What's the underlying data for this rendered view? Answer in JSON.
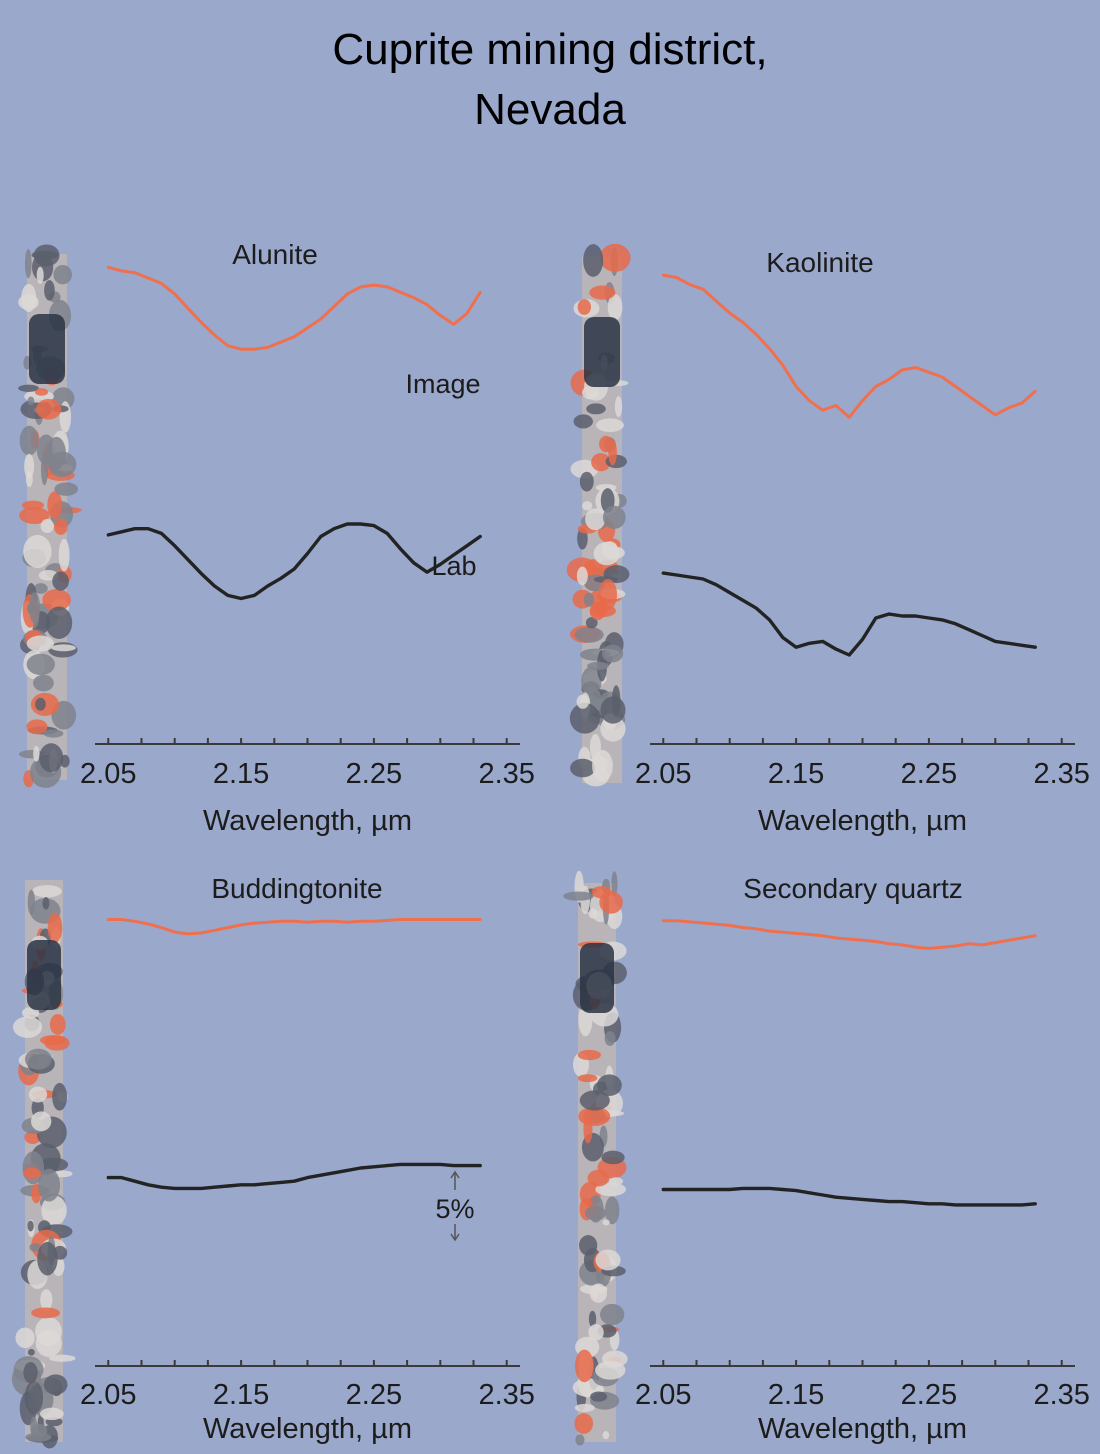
{
  "title_lines": [
    "Cuprite mining district,",
    "Nevada"
  ],
  "colors": {
    "background": "#9aa8cc",
    "image_series": "#f0704e",
    "lab_series": "#232323",
    "axis": "#3a3a3a",
    "text": "#1c1c1c",
    "strip_base": "#b8b4b8",
    "strip_red": "#e86a4a",
    "strip_dark": "#2a3444"
  },
  "chart_data": [
    {
      "type": "line",
      "title": "Alunite",
      "xlabel": "Wavelength, µm",
      "xticks": [
        "2.05",
        "2.15",
        "2.25",
        "2.35"
      ],
      "xlim": [
        2.04,
        2.36
      ],
      "ylim": [
        0,
        1
      ],
      "annotations": [
        "Image",
        "Lab"
      ],
      "series": [
        {
          "x": [
            2.05,
            2.06,
            2.07,
            2.08,
            2.09,
            2.1,
            2.11,
            2.12,
            2.13,
            2.14,
            2.15,
            2.16,
            2.17,
            2.18,
            2.19,
            2.2,
            2.21,
            2.22,
            2.23,
            2.24,
            2.25,
            2.26,
            2.27,
            2.28,
            2.29,
            2.3,
            2.31,
            2.32,
            2.33
          ],
          "y": [
            0.97,
            0.95,
            0.94,
            0.91,
            0.88,
            0.82,
            0.74,
            0.66,
            0.59,
            0.53,
            0.51,
            0.51,
            0.52,
            0.55,
            0.58,
            0.63,
            0.68,
            0.75,
            0.82,
            0.86,
            0.87,
            0.86,
            0.83,
            0.8,
            0.76,
            0.7,
            0.65,
            0.71,
            0.83
          ]
        },
        {
          "x": [
            2.05,
            2.06,
            2.07,
            2.08,
            2.09,
            2.1,
            2.11,
            2.12,
            2.13,
            2.14,
            2.15,
            2.16,
            2.17,
            2.18,
            2.19,
            2.2,
            2.21,
            2.22,
            2.23,
            2.24,
            2.25,
            2.26,
            2.27,
            2.28,
            2.29,
            2.3,
            2.31,
            2.32,
            2.33
          ],
          "y": [
            0.42,
            0.44,
            0.46,
            0.46,
            0.43,
            0.35,
            0.26,
            0.17,
            0.09,
            0.03,
            0.01,
            0.03,
            0.09,
            0.14,
            0.2,
            0.3,
            0.41,
            0.46,
            0.49,
            0.49,
            0.48,
            0.43,
            0.33,
            0.24,
            0.18,
            0.23,
            0.29,
            0.35,
            0.41
          ]
        }
      ]
    },
    {
      "type": "line",
      "title": "Kaolinite",
      "xlabel": "Wavelength, µm",
      "xticks": [
        "2.05",
        "2.15",
        "2.25",
        "2.35"
      ],
      "xlim": [
        2.04,
        2.36
      ],
      "ylim": [
        0,
        1
      ],
      "series": [
        {
          "x": [
            2.05,
            2.06,
            2.07,
            2.08,
            2.09,
            2.1,
            2.11,
            2.12,
            2.13,
            2.14,
            2.15,
            2.16,
            2.17,
            2.18,
            2.19,
            2.2,
            2.21,
            2.22,
            2.23,
            2.24,
            2.25,
            2.26,
            2.27,
            2.28,
            2.29,
            2.3,
            2.31,
            2.32,
            2.33
          ],
          "y": [
            0.97,
            0.96,
            0.93,
            0.91,
            0.86,
            0.81,
            0.77,
            0.72,
            0.66,
            0.59,
            0.5,
            0.44,
            0.4,
            0.42,
            0.37,
            0.44,
            0.5,
            0.53,
            0.57,
            0.58,
            0.56,
            0.54,
            0.5,
            0.46,
            0.42,
            0.38,
            0.41,
            0.43,
            0.48
          ]
        },
        {
          "x": [
            2.05,
            2.06,
            2.07,
            2.08,
            2.09,
            2.1,
            2.11,
            2.12,
            2.13,
            2.14,
            2.15,
            2.16,
            2.17,
            2.18,
            2.19,
            2.2,
            2.21,
            2.22,
            2.23,
            2.24,
            2.25,
            2.26,
            2.27,
            2.28,
            2.29,
            2.3,
            2.31,
            2.32,
            2.33
          ],
          "y": [
            0.42,
            0.41,
            0.4,
            0.39,
            0.36,
            0.32,
            0.28,
            0.24,
            0.18,
            0.09,
            0.04,
            0.06,
            0.07,
            0.03,
            0.0,
            0.08,
            0.19,
            0.21,
            0.2,
            0.2,
            0.19,
            0.18,
            0.16,
            0.13,
            0.1,
            0.07,
            0.06,
            0.05,
            0.04
          ]
        }
      ]
    },
    {
      "type": "line",
      "title": "Buddingtonite",
      "xlabel": "Wavelength, µm",
      "xticks": [
        "2.05",
        "2.15",
        "2.25",
        "2.35"
      ],
      "xlim": [
        2.04,
        2.36
      ],
      "ylim": [
        0,
        1
      ],
      "annotations": [
        "5%"
      ],
      "series": [
        {
          "x": [
            2.05,
            2.06,
            2.07,
            2.08,
            2.09,
            2.1,
            2.11,
            2.12,
            2.13,
            2.14,
            2.15,
            2.16,
            2.17,
            2.18,
            2.19,
            2.2,
            2.21,
            2.22,
            2.23,
            2.24,
            2.25,
            2.26,
            2.27,
            2.28,
            2.29,
            2.3,
            2.31,
            2.32,
            2.33
          ],
          "y": [
            0.95,
            0.95,
            0.93,
            0.9,
            0.86,
            0.81,
            0.79,
            0.8,
            0.83,
            0.86,
            0.89,
            0.91,
            0.92,
            0.93,
            0.93,
            0.92,
            0.93,
            0.93,
            0.92,
            0.93,
            0.93,
            0.94,
            0.95,
            0.95,
            0.95,
            0.95,
            0.95,
            0.95,
            0.95
          ]
        },
        {
          "x": [
            2.05,
            2.06,
            2.07,
            2.08,
            2.09,
            2.1,
            2.11,
            2.12,
            2.13,
            2.14,
            2.15,
            2.16,
            2.17,
            2.18,
            2.19,
            2.2,
            2.21,
            2.22,
            2.23,
            2.24,
            2.25,
            2.26,
            2.27,
            2.28,
            2.29,
            2.3,
            2.31,
            2.32,
            2.33
          ],
          "y": [
            0.52,
            0.52,
            0.49,
            0.46,
            0.44,
            0.43,
            0.43,
            0.43,
            0.44,
            0.45,
            0.46,
            0.46,
            0.47,
            0.48,
            0.49,
            0.52,
            0.54,
            0.56,
            0.58,
            0.6,
            0.61,
            0.62,
            0.63,
            0.63,
            0.63,
            0.63,
            0.62,
            0.62,
            0.62
          ]
        }
      ]
    },
    {
      "type": "line",
      "title": "Secondary quartz",
      "xlabel": "Wavelength, µm",
      "xticks": [
        "2.05",
        "2.15",
        "2.25",
        "2.35"
      ],
      "xlim": [
        2.04,
        2.36
      ],
      "ylim": [
        0,
        1
      ],
      "series": [
        {
          "x": [
            2.05,
            2.06,
            2.07,
            2.08,
            2.09,
            2.1,
            2.11,
            2.12,
            2.13,
            2.14,
            2.15,
            2.16,
            2.17,
            2.18,
            2.19,
            2.2,
            2.21,
            2.22,
            2.23,
            2.24,
            2.25,
            2.26,
            2.27,
            2.28,
            2.29,
            2.3,
            2.31,
            2.32,
            2.33
          ],
          "y": [
            0.95,
            0.95,
            0.94,
            0.93,
            0.92,
            0.91,
            0.89,
            0.88,
            0.86,
            0.85,
            0.84,
            0.83,
            0.82,
            0.8,
            0.79,
            0.78,
            0.77,
            0.75,
            0.74,
            0.72,
            0.71,
            0.72,
            0.73,
            0.75,
            0.74,
            0.76,
            0.78,
            0.8,
            0.82
          ]
        },
        {
          "x": [
            2.05,
            2.06,
            2.07,
            2.08,
            2.09,
            2.1,
            2.11,
            2.12,
            2.13,
            2.14,
            2.15,
            2.16,
            2.17,
            2.18,
            2.19,
            2.2,
            2.21,
            2.22,
            2.23,
            2.24,
            2.25,
            2.26,
            2.27,
            2.28,
            2.29,
            2.3,
            2.31,
            2.32,
            2.33
          ],
          "y": [
            0.55,
            0.55,
            0.55,
            0.55,
            0.55,
            0.55,
            0.56,
            0.56,
            0.56,
            0.55,
            0.54,
            0.52,
            0.5,
            0.48,
            0.47,
            0.46,
            0.45,
            0.44,
            0.44,
            0.43,
            0.42,
            0.42,
            0.41,
            0.41,
            0.41,
            0.41,
            0.41,
            0.41,
            0.42
          ]
        }
      ]
    }
  ]
}
